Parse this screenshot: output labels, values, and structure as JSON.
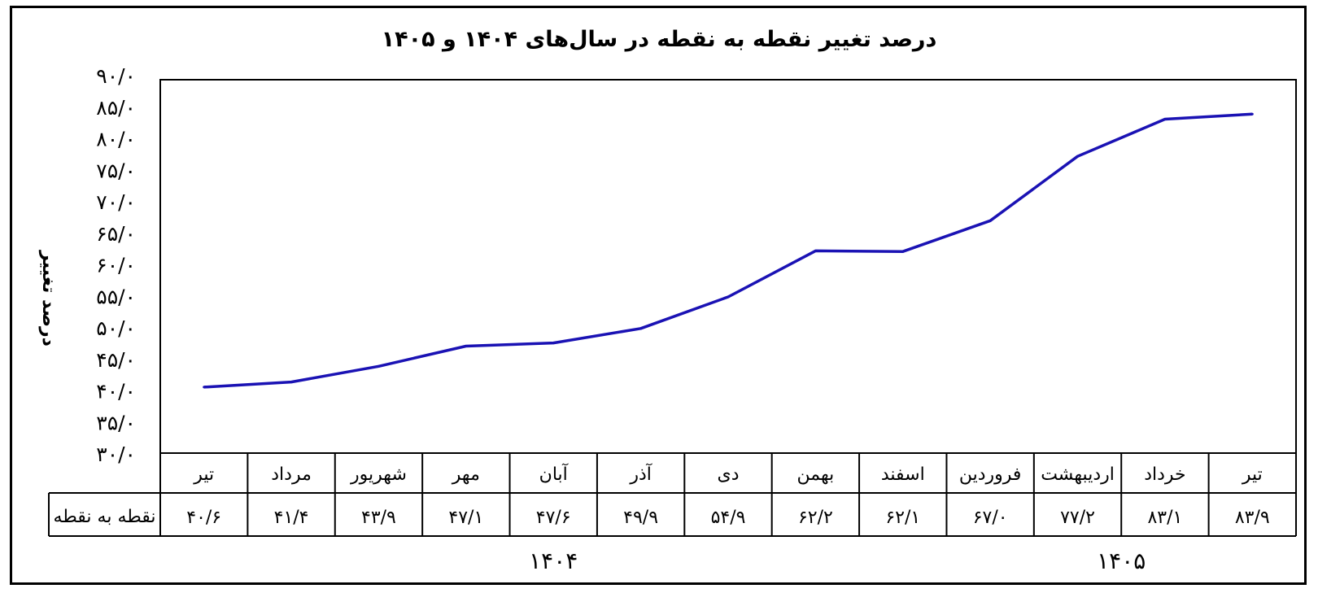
{
  "chart_data": {
    "type": "line",
    "title": "درصد تغییر نقطه به نقطه در سال‌های ۱۴۰۴ و ۱۴۰۵",
    "ylabel": "درصد تغییر",
    "xlabel": "",
    "ylim": [
      30,
      90
    ],
    "y_ticks": [
      30,
      35,
      40,
      45,
      50,
      55,
      60,
      65,
      70,
      75,
      80,
      85,
      90
    ],
    "y_tick_labels": [
      "۳۰/۰",
      "۳۵/۰",
      "۴۰/۰",
      "۴۵/۰",
      "۵۰/۰",
      "۵۵/۰",
      "۶۰/۰",
      "۶۵/۰",
      "۷۰/۰",
      "۷۵/۰",
      "۸۰/۰",
      "۸۵/۰",
      "۹۰/۰"
    ],
    "categories": [
      "تیر",
      "مرداد",
      "شهریور",
      "مهر",
      "آبان",
      "آذر",
      "دی",
      "بهمن",
      "اسفند",
      "فروردین",
      "اردیبهشت",
      "خرداد",
      "تیر"
    ],
    "series": [
      {
        "name": "نقطه به نقطه",
        "color": "#1a12b4",
        "values": [
          40.6,
          41.4,
          43.9,
          47.1,
          47.6,
          49.9,
          54.9,
          62.2,
          62.1,
          67.0,
          77.2,
          83.1,
          83.9
        ],
        "labels": [
          "۴۰/۶",
          "۴۱/۴",
          "۴۳/۹",
          "۴۷/۱",
          "۴۷/۶",
          "۴۹/۹",
          "۵۴/۹",
          "۶۲/۲",
          "۶۲/۱",
          "۶۷/۰",
          "۷۷/۲",
          "۸۳/۱",
          "۸۳/۹"
        ]
      }
    ],
    "year_groups": [
      {
        "label": "۱۴۰۴",
        "from": 0,
        "to": 8
      },
      {
        "label": "۱۴۰۵",
        "from": 9,
        "to": 12
      }
    ],
    "grid": false,
    "legend": "none"
  }
}
